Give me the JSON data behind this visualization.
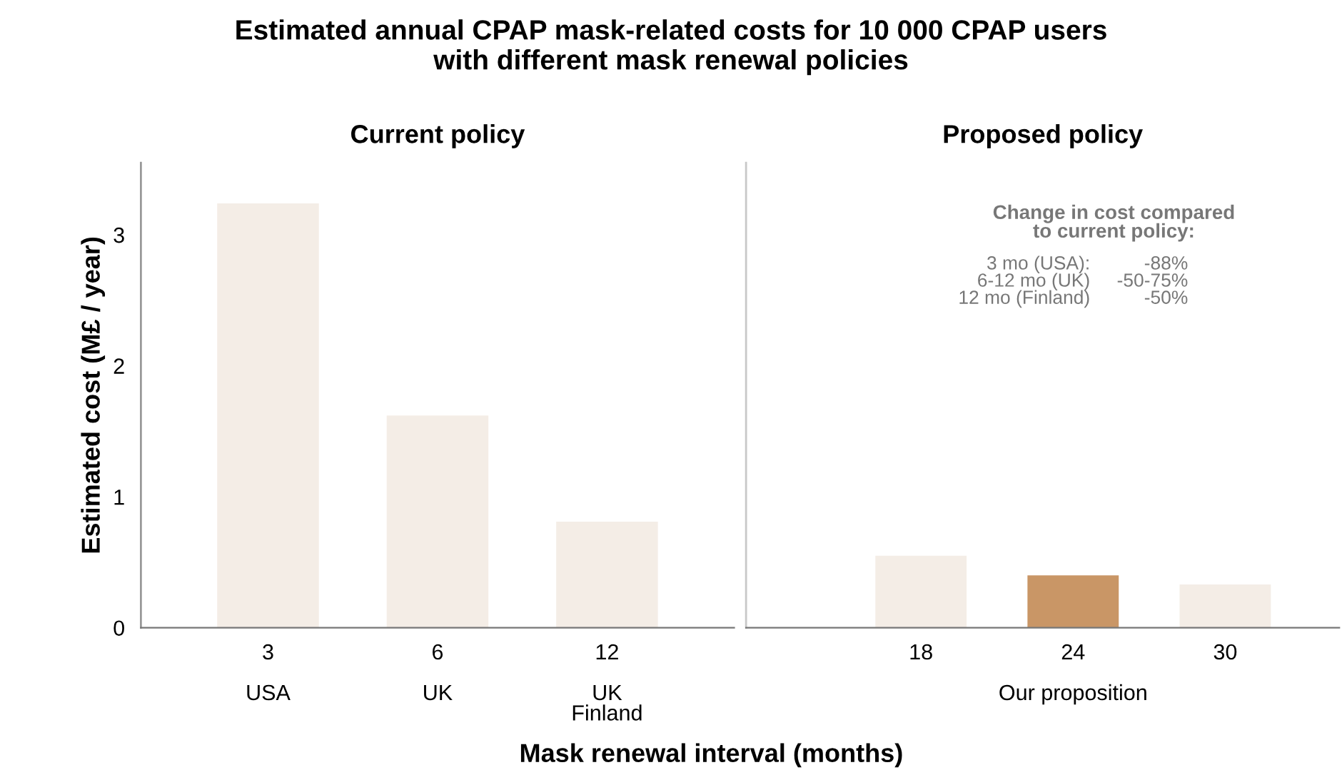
{
  "chart_data": [
    {
      "type": "bar",
      "title": "Estimated annual CPAP mask-related costs for 10 000 CPAP users\nwith different mask renewal policies",
      "subtitle": "Current policy",
      "xlabel": "Mask renewal interval (months)",
      "ylabel": "Estimated cost (M£ / year)",
      "categories": [
        "3\n\nUSA",
        "6\n\nUK",
        "12\n\nUK\nFinland"
      ],
      "values": [
        3.24,
        1.62,
        0.81
      ],
      "colors": [
        "#f4ede6",
        "#f4ede6",
        "#f4ede6"
      ],
      "ylim": [
        0,
        3.55
      ],
      "yticks": [
        0,
        1,
        2,
        3
      ]
    },
    {
      "type": "bar",
      "subtitle": "Proposed policy",
      "categories": [
        "18",
        "24\n\nOur proposition",
        "30"
      ],
      "values": [
        0.55,
        0.4,
        0.33
      ],
      "colors": [
        "#f4ede6",
        "#c99666",
        "#f4ede6"
      ],
      "ylim": [
        0,
        3.55
      ],
      "yticks": [
        0,
        1,
        2,
        3
      ],
      "tick_labels": "x",
      "annotations": [
        "Change in cost compared\nto current policy:",
        "3 mo (USA):",
        "-88%",
        "6-12 mo (UK)",
        "-50-75%",
        "12 mo (Finland)",
        "-50%"
      ]
    }
  ]
}
